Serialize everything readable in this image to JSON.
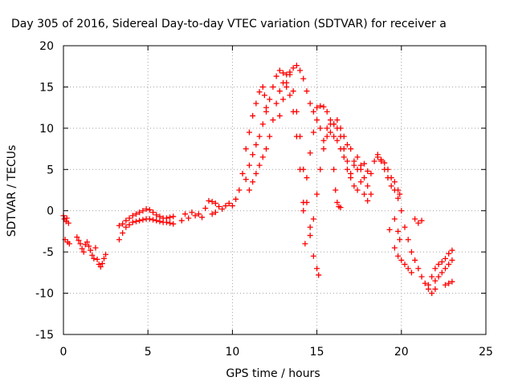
{
  "chart_data": {
    "type": "scatter",
    "title": "Day 305 of 2016, Sidereal Day-to-day VTEC variation (SDTVAR) for receiver a",
    "xlabel": "GPS time / hours",
    "ylabel": "SDTVAR / TECUs",
    "xlim": [
      0,
      25
    ],
    "ylim": [
      -15,
      20
    ],
    "xticks": [
      0,
      5,
      10,
      15,
      20,
      25
    ],
    "yticks": [
      -15,
      -10,
      -5,
      0,
      5,
      10,
      15,
      20
    ],
    "grid": true,
    "marker": "+",
    "color": "#ff0000",
    "series": [
      {
        "name": "a",
        "points": [
          [
            0.0,
            -0.6
          ],
          [
            0.05,
            -1.0
          ],
          [
            0.1,
            -3.5
          ],
          [
            0.15,
            -1.3
          ],
          [
            0.2,
            -0.9
          ],
          [
            0.25,
            -3.8
          ],
          [
            0.3,
            -1.5
          ],
          [
            0.35,
            -4.0
          ],
          [
            0.8,
            -3.2
          ],
          [
            0.9,
            -3.6
          ],
          [
            1.0,
            -4.0
          ],
          [
            1.1,
            -4.6
          ],
          [
            1.2,
            -5.0
          ],
          [
            1.3,
            -4.1
          ],
          [
            1.4,
            -3.8
          ],
          [
            1.5,
            -4.3
          ],
          [
            1.6,
            -4.8
          ],
          [
            1.7,
            -5.4
          ],
          [
            1.8,
            -5.8
          ],
          [
            1.9,
            -4.5
          ],
          [
            2.0,
            -5.9
          ],
          [
            2.1,
            -6.5
          ],
          [
            2.2,
            -6.8
          ],
          [
            2.3,
            -6.4
          ],
          [
            2.4,
            -5.8
          ],
          [
            2.5,
            -5.3
          ],
          [
            3.3,
            -3.5
          ],
          [
            3.3,
            -1.8
          ],
          [
            3.5,
            -2.7
          ],
          [
            3.5,
            -1.6
          ],
          [
            3.7,
            -2.0
          ],
          [
            3.7,
            -1.2
          ],
          [
            3.9,
            -1.7
          ],
          [
            3.9,
            -0.9
          ],
          [
            4.1,
            -1.4
          ],
          [
            4.1,
            -0.6
          ],
          [
            4.3,
            -1.3
          ],
          [
            4.3,
            -0.4
          ],
          [
            4.5,
            -1.2
          ],
          [
            4.5,
            -0.2
          ],
          [
            4.7,
            -1.1
          ],
          [
            4.7,
            0.0
          ],
          [
            4.9,
            -1.0
          ],
          [
            4.9,
            0.2
          ],
          [
            5.1,
            -1.0
          ],
          [
            5.1,
            0.1
          ],
          [
            5.3,
            -1.1
          ],
          [
            5.3,
            -0.2
          ],
          [
            5.5,
            -1.2
          ],
          [
            5.5,
            -0.5
          ],
          [
            5.7,
            -1.3
          ],
          [
            5.7,
            -0.7
          ],
          [
            5.9,
            -1.4
          ],
          [
            5.9,
            -0.9
          ],
          [
            6.1,
            -1.4
          ],
          [
            6.1,
            -0.9
          ],
          [
            6.3,
            -1.5
          ],
          [
            6.3,
            -0.8
          ],
          [
            6.5,
            -1.6
          ],
          [
            6.5,
            -0.7
          ],
          [
            7.0,
            -1.2
          ],
          [
            7.2,
            -0.4
          ],
          [
            7.4,
            -0.9
          ],
          [
            7.6,
            -0.2
          ],
          [
            7.8,
            -0.6
          ],
          [
            8.0,
            -0.4
          ],
          [
            8.2,
            -0.8
          ],
          [
            8.4,
            0.3
          ],
          [
            8.6,
            1.2
          ],
          [
            8.8,
            1.1
          ],
          [
            9.0,
            0.9
          ],
          [
            8.8,
            -0.4
          ],
          [
            9.0,
            -0.2
          ],
          [
            9.2,
            0.5
          ],
          [
            9.4,
            0.2
          ],
          [
            9.6,
            0.6
          ],
          [
            9.8,
            0.9
          ],
          [
            10.0,
            0.6
          ],
          [
            10.2,
            1.4
          ],
          [
            10.4,
            2.5
          ],
          [
            10.6,
            4.5
          ],
          [
            10.8,
            7.5
          ],
          [
            11.0,
            9.5
          ],
          [
            11.2,
            11.5
          ],
          [
            11.4,
            13.0
          ],
          [
            11.6,
            14.4
          ],
          [
            11.8,
            15.0
          ],
          [
            11.9,
            14.0
          ],
          [
            12.0,
            12.5
          ],
          [
            10.8,
            3.8
          ],
          [
            11.0,
            5.5
          ],
          [
            11.2,
            6.8
          ],
          [
            11.4,
            8.0
          ],
          [
            11.6,
            9.0
          ],
          [
            11.8,
            10.5
          ],
          [
            12.0,
            12.0
          ],
          [
            12.2,
            13.5
          ],
          [
            12.4,
            15.0
          ],
          [
            12.6,
            16.3
          ],
          [
            12.8,
            17.0
          ],
          [
            13.0,
            16.7
          ],
          [
            13.2,
            15.5
          ],
          [
            13.4,
            14.0
          ],
          [
            13.6,
            12.0
          ],
          [
            13.8,
            9.0
          ],
          [
            14.0,
            5.0
          ],
          [
            14.2,
            0.0
          ],
          [
            14.3,
            -4.0
          ],
          [
            11.0,
            2.5
          ],
          [
            11.2,
            3.5
          ],
          [
            11.4,
            4.5
          ],
          [
            11.6,
            5.5
          ],
          [
            11.8,
            6.5
          ],
          [
            12.0,
            7.5
          ],
          [
            12.2,
            9.0
          ],
          [
            12.4,
            11.0
          ],
          [
            12.6,
            13.0
          ],
          [
            12.8,
            14.5
          ],
          [
            13.0,
            15.5
          ],
          [
            13.2,
            16.5
          ],
          [
            13.4,
            16.8
          ],
          [
            13.6,
            14.5
          ],
          [
            13.8,
            12.0
          ],
          [
            14.0,
            9.0
          ],
          [
            14.2,
            5.0
          ],
          [
            14.4,
            1.0
          ],
          [
            14.6,
            -3.0
          ],
          [
            14.8,
            -5.5
          ],
          [
            15.0,
            -7.0
          ],
          [
            15.1,
            -7.8
          ],
          [
            12.8,
            11.5
          ],
          [
            13.0,
            13.5
          ],
          [
            13.2,
            15.0
          ],
          [
            13.4,
            16.5
          ],
          [
            13.6,
            17.3
          ],
          [
            13.8,
            17.6
          ],
          [
            14.0,
            17.0
          ],
          [
            14.2,
            16.0
          ],
          [
            14.4,
            14.5
          ],
          [
            14.6,
            13.0
          ],
          [
            14.8,
            12.0
          ],
          [
            15.0,
            12.5
          ],
          [
            15.2,
            12.7
          ],
          [
            15.4,
            12.6
          ],
          [
            15.6,
            12.0
          ],
          [
            15.8,
            11.0
          ],
          [
            16.0,
            10.5
          ],
          [
            16.2,
            10.0
          ],
          [
            16.4,
            9.0
          ],
          [
            16.6,
            7.5
          ],
          [
            16.8,
            6.0
          ],
          [
            17.0,
            4.0
          ],
          [
            17.2,
            3.0
          ],
          [
            17.4,
            2.5
          ],
          [
            17.6,
            5.0
          ],
          [
            17.8,
            5.7
          ],
          [
            18.0,
            4.8
          ],
          [
            18.2,
            4.5
          ],
          [
            18.4,
            6.0
          ],
          [
            18.6,
            6.8
          ],
          [
            18.8,
            6.0
          ],
          [
            19.0,
            5.0
          ],
          [
            19.2,
            4.0
          ],
          [
            19.4,
            3.0
          ],
          [
            19.6,
            2.5
          ],
          [
            19.8,
            1.5
          ],
          [
            14.2,
            1.0
          ],
          [
            14.4,
            4.0
          ],
          [
            14.6,
            7.0
          ],
          [
            14.8,
            9.5
          ],
          [
            15.0,
            11.0
          ],
          [
            15.2,
            10.0
          ],
          [
            15.4,
            8.5
          ],
          [
            15.6,
            9.0
          ],
          [
            15.8,
            9.5
          ],
          [
            16.0,
            10.5
          ],
          [
            16.2,
            11.0
          ],
          [
            16.4,
            10.0
          ],
          [
            16.6,
            9.0
          ],
          [
            16.8,
            8.0
          ],
          [
            17.0,
            7.5
          ],
          [
            17.2,
            6.0
          ],
          [
            17.4,
            5.0
          ],
          [
            17.6,
            3.5
          ],
          [
            17.8,
            2.0
          ],
          [
            18.0,
            1.2
          ],
          [
            14.6,
            -2.0
          ],
          [
            14.8,
            -1.0
          ],
          [
            15.0,
            2.0
          ],
          [
            15.2,
            5.0
          ],
          [
            15.4,
            7.5
          ],
          [
            15.6,
            10.0
          ],
          [
            15.8,
            10.5
          ],
          [
            16.0,
            9.0
          ],
          [
            16.2,
            8.5
          ],
          [
            16.4,
            7.5
          ],
          [
            16.6,
            6.5
          ],
          [
            16.8,
            5.0
          ],
          [
            17.0,
            4.5
          ],
          [
            17.2,
            5.5
          ],
          [
            17.4,
            6.5
          ],
          [
            17.6,
            5.5
          ],
          [
            17.8,
            4.0
          ],
          [
            18.0,
            3.0
          ],
          [
            18.2,
            2.0
          ],
          [
            16.0,
            5.0
          ],
          [
            16.1,
            2.5
          ],
          [
            16.2,
            1.0
          ],
          [
            16.3,
            0.5
          ],
          [
            16.4,
            0.4
          ],
          [
            18.6,
            6.5
          ],
          [
            18.8,
            6.2
          ],
          [
            19.0,
            5.8
          ],
          [
            19.2,
            5.0
          ],
          [
            19.4,
            4.0
          ],
          [
            19.6,
            3.5
          ],
          [
            19.8,
            2.5
          ],
          [
            19.9,
            2.0
          ],
          [
            19.3,
            -2.3
          ],
          [
            19.6,
            -1.0
          ],
          [
            19.8,
            -2.5
          ],
          [
            19.9,
            -3.5
          ],
          [
            19.6,
            -4.5
          ],
          [
            19.8,
            -5.5
          ],
          [
            20.0,
            -6.0
          ],
          [
            20.2,
            -6.5
          ],
          [
            20.4,
            -7.0
          ],
          [
            20.6,
            -7.5
          ],
          [
            20.0,
            0.0
          ],
          [
            20.2,
            -2.0
          ],
          [
            20.4,
            -3.5
          ],
          [
            20.6,
            -5.0
          ],
          [
            20.8,
            -6.0
          ],
          [
            21.0,
            -7.0
          ],
          [
            21.2,
            -8.0
          ],
          [
            21.4,
            -8.8
          ],
          [
            21.6,
            -9.5
          ],
          [
            21.8,
            -10.0
          ],
          [
            22.0,
            -9.5
          ],
          [
            20.8,
            -1.0
          ],
          [
            21.0,
            -1.5
          ],
          [
            21.2,
            -1.2
          ],
          [
            21.6,
            -9.0
          ],
          [
            21.8,
            -8.0
          ],
          [
            22.0,
            -7.0
          ],
          [
            22.2,
            -6.5
          ],
          [
            22.4,
            -6.2
          ],
          [
            22.6,
            -5.8
          ],
          [
            22.8,
            -5.2
          ],
          [
            23.0,
            -4.8
          ],
          [
            22.0,
            -8.5
          ],
          [
            22.2,
            -8.0
          ],
          [
            22.4,
            -7.5
          ],
          [
            22.6,
            -7.0
          ],
          [
            22.8,
            -6.5
          ],
          [
            23.0,
            -6.0
          ],
          [
            22.6,
            -9.0
          ],
          [
            22.8,
            -8.8
          ],
          [
            23.0,
            -8.6
          ]
        ]
      }
    ]
  }
}
